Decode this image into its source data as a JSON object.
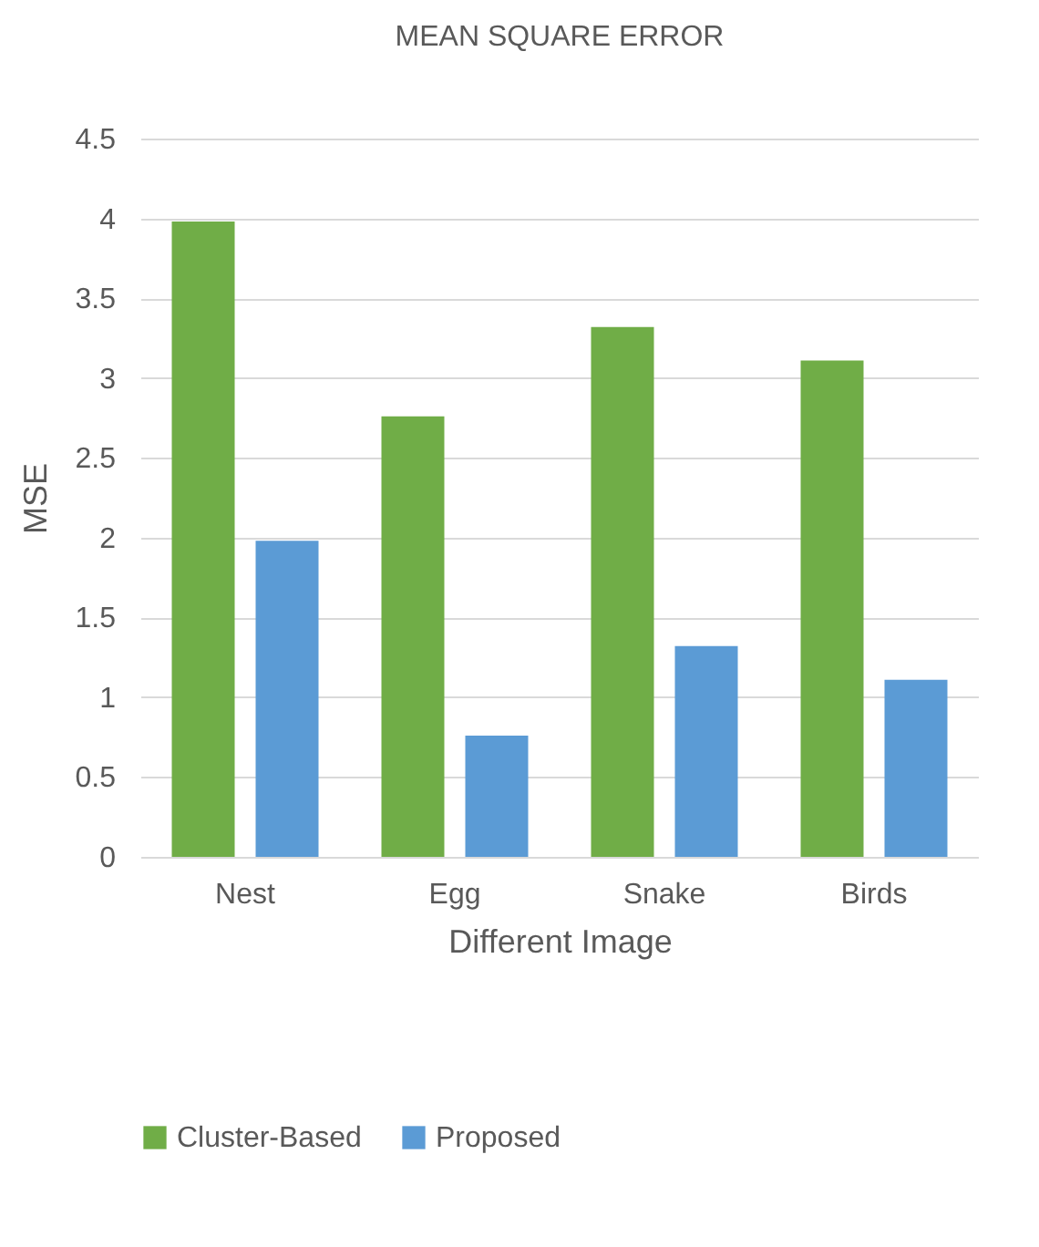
{
  "chart_data": {
    "type": "bar",
    "title": "MEAN SQUARE ERROR",
    "xlabel": "Different Image",
    "ylabel": "MSE",
    "categories": [
      "Nest",
      "Egg",
      "Snake",
      "Birds"
    ],
    "series": [
      {
        "name": "Cluster-Based",
        "color": "#70ad47",
        "values": [
          3.98,
          2.76,
          3.32,
          3.11
        ]
      },
      {
        "name": "Proposed",
        "color": "#5b9bd5",
        "values": [
          1.98,
          0.76,
          1.32,
          1.11
        ]
      }
    ],
    "ylim": [
      0,
      4.5
    ],
    "yticks": [
      0,
      0.5,
      1,
      1.5,
      2,
      2.5,
      3,
      3.5,
      4,
      4.5
    ],
    "grid": "y",
    "legend": "bottom"
  }
}
